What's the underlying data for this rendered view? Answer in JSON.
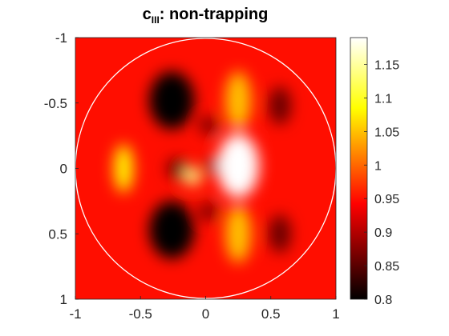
{
  "chart_data": {
    "type": "heatmap",
    "title": {
      "main": "c",
      "subscript": "III",
      "rest": ": non-trapping"
    },
    "xlabel": "",
    "ylabel": "",
    "xlim": [
      -1,
      1
    ],
    "ylim": [
      -1,
      1
    ],
    "y_reversed": true,
    "x_ticks": [
      "-1",
      "-0.5",
      "0",
      "0.5",
      "1"
    ],
    "y_ticks": [
      "-1",
      "-0.5",
      "0",
      "0.5",
      "1"
    ],
    "colormap": "hot",
    "clim": [
      0.8,
      1.19
    ],
    "colorbar": {
      "ticks": [
        0.8,
        0.85,
        0.9,
        0.95,
        1,
        1.05,
        1.1,
        1.15
      ],
      "tick_labels": [
        "0.8",
        "0.85",
        "0.9",
        "0.95",
        "1",
        "1.05",
        "1.1",
        "1.15"
      ]
    },
    "background_value": 0.95,
    "circle": {
      "center": [
        0,
        0
      ],
      "radius": 1,
      "color": "#ffffff"
    },
    "features": [
      {
        "x": -0.26,
        "y": -0.52,
        "value": 0.8
      },
      {
        "x": -0.26,
        "y": 0.47,
        "value": 0.8
      },
      {
        "x": -0.22,
        "y": 0.0,
        "value": 0.86
      },
      {
        "x": 0.57,
        "y": -0.48,
        "value": 0.86
      },
      {
        "x": 0.57,
        "y": 0.5,
        "value": 0.86
      },
      {
        "x": 0.02,
        "y": -0.33,
        "value": 0.87
      },
      {
        "x": 0.02,
        "y": 0.33,
        "value": 0.87
      },
      {
        "x": 0.05,
        "y": -0.02,
        "value": 0.87
      },
      {
        "x": -0.63,
        "y": 0.0,
        "value": 1.08
      },
      {
        "x": 0.25,
        "y": -0.02,
        "value": 1.19
      },
      {
        "x": -0.1,
        "y": 0.06,
        "value": 1.14
      },
      {
        "x": 0.25,
        "y": -0.52,
        "value": 1.05
      },
      {
        "x": 0.25,
        "y": 0.5,
        "value": 1.05
      }
    ]
  }
}
